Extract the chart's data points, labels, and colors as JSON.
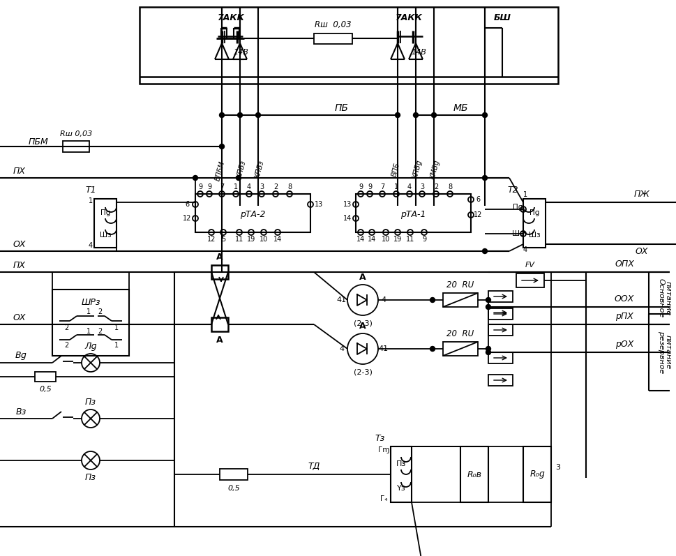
{
  "bg_color": "#ffffff",
  "lw": 1.3,
  "labels": {
    "7AKK_1": "7АКК",
    "7AKK_2": "7АКК",
    "Rsh_top": "Rш  0,03",
    "BSH": "БШ",
    "PB": "ПБ",
    "MB": "МБ",
    "PBM": "ПБМ",
    "PH": "ПХ",
    "PZH": "ПЖ",
    "OH": "ОХ",
    "T1": "T1",
    "T2": "T2",
    "VPBM": "ВПБМ",
    "KPB2a": "КПБз",
    "KPB2b": "КПБз",
    "RTA2": "рТА-2",
    "VPB1": "ВПБ",
    "KPB1": "КПБɡ",
    "KMB1": "КМБɡ",
    "RTA1": "рТА-1",
    "Rsh_left": "Rш 0,03",
    "14B_1": "14В",
    "14B_2": "14В",
    "SHR2": "ШРз",
    "B1": "Вɡ",
    "L1": "Лɡ",
    "B2": "Вз",
    "P2": "Пз",
    "P3": "Пз",
    "05_1": "0,5",
    "05_2": "0,5",
    "A": "A",
    "diode1": "(2-3)",
    "diode2": "(2-3)",
    "d1_41": "41",
    "d1_4": "4",
    "d2_4": "4",
    "d2_41": "41",
    "20RU_1": "20  RU",
    "20RU_2": "20  RU",
    "FV": "FV",
    "OPH": "ОПХ",
    "OOH": "ООХ",
    "RPH": "рПХ",
    "ROH": "рОХ",
    "TD": "ТД",
    "T3": "Тз",
    "Pi2": "Πз",
    "Y3": "Υз",
    "I1": "Гɱ",
    "I4": "Г₄",
    "R02": "R₀в",
    "R01": "R₀ɡ",
    "osnov": "Основное",
    "rezerv": "резервное",
    "pitanie": "питание",
    "num3": "3",
    "P1": "Πɡ",
    "Sh3": "Шз"
  }
}
